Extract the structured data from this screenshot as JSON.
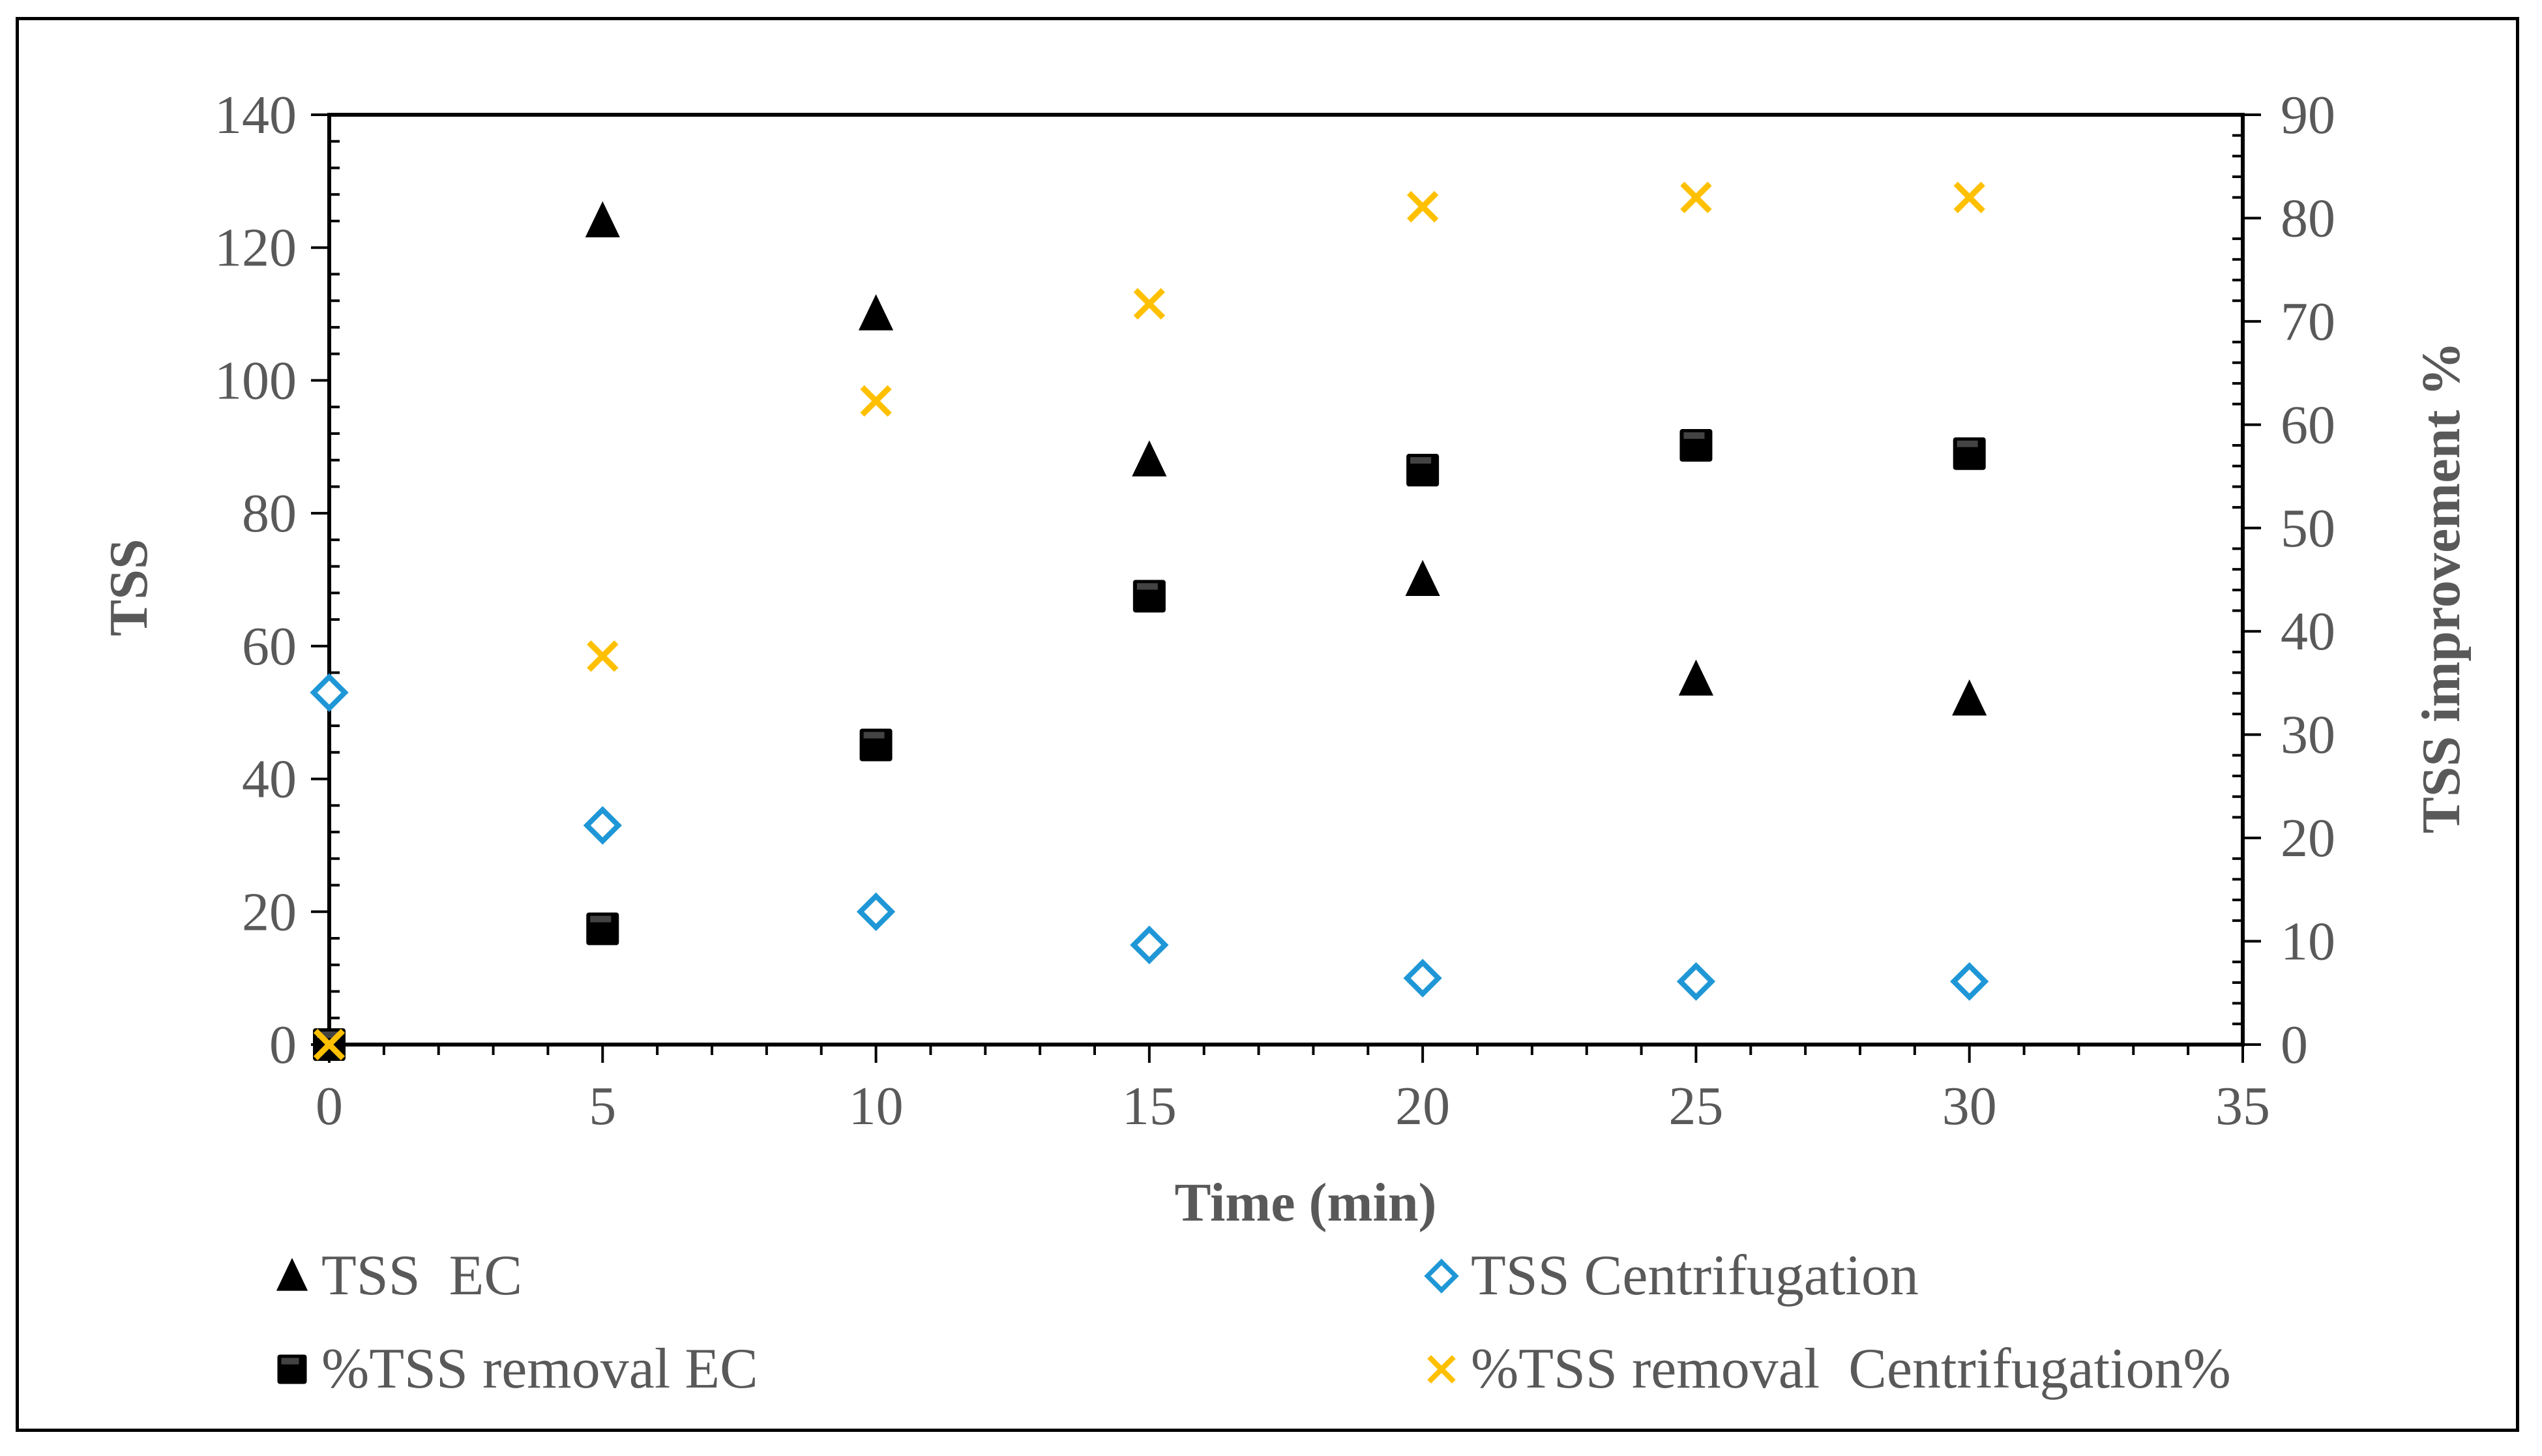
{
  "chart_data": {
    "type": "scatter",
    "title": "",
    "xlabel": "Time (min)",
    "ylabel": "TSS",
    "y2label": "TSS improvement %",
    "xlim": [
      0,
      35
    ],
    "ylim": [
      0,
      140
    ],
    "y2lim": [
      0,
      90
    ],
    "xticks": [
      "0",
      "5",
      "10",
      "15",
      "20",
      "25",
      "30",
      "35"
    ],
    "yticks": [
      "0",
      "20",
      "40",
      "60",
      "80",
      "100",
      "120",
      "140"
    ],
    "y2ticks": [
      "0",
      "10",
      "20",
      "30",
      "40",
      "50",
      "60",
      "70",
      "80",
      "90"
    ],
    "legend_position": "bottom",
    "series": [
      {
        "name": "TSS  EC",
        "axis": "left",
        "marker": "triangle",
        "color": "#000000",
        "points": [
          [
            5,
            124
          ],
          [
            10,
            110
          ],
          [
            15,
            88
          ],
          [
            20,
            70
          ],
          [
            25,
            55
          ],
          [
            30,
            52
          ]
        ]
      },
      {
        "name": "TSS Centrifugation",
        "axis": "left",
        "marker": "diamond-open",
        "color": "#1F97D6",
        "points": [
          [
            0,
            53
          ],
          [
            5,
            33
          ],
          [
            10,
            20
          ],
          [
            15,
            15
          ],
          [
            20,
            10
          ],
          [
            25,
            9.5
          ],
          [
            30,
            9.5
          ]
        ]
      },
      {
        "name": "%TSS removal EC",
        "axis": "right",
        "marker": "square",
        "color": "#000000",
        "points": [
          [
            0,
            0
          ],
          [
            5,
            11.2
          ],
          [
            10,
            29
          ],
          [
            15,
            43.4
          ],
          [
            20,
            55.6
          ],
          [
            25,
            58
          ],
          [
            30,
            57.2
          ]
        ]
      },
      {
        "name": "%TSS removal  Centrifugation%",
        "axis": "right",
        "marker": "x",
        "color": "#FFC000",
        "points": [
          [
            0,
            0
          ],
          [
            5,
            37.6
          ],
          [
            10,
            62.3
          ],
          [
            15,
            71.7
          ],
          [
            20,
            81.1
          ],
          [
            25,
            82
          ],
          [
            30,
            82
          ]
        ]
      }
    ]
  }
}
